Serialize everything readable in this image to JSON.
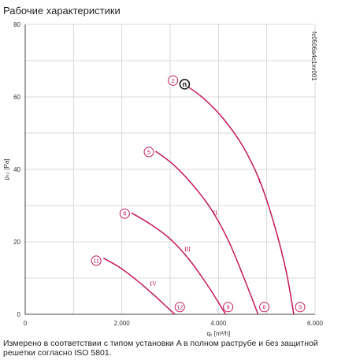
{
  "header": {
    "title": "Рабочие характеристики"
  },
  "note": "Измерено в соответствии с типом установки A в полном раструбе и без защитной решетки согласно ISO 5801.",
  "chart_data": {
    "type": "line",
    "xlabel": "qᵥ [m³/h]",
    "ylabel": "pₛ₂ [Pa]",
    "code": "fc0506a4c1xv001",
    "xlim": [
      0,
      6000
    ],
    "ylim": [
      0,
      80
    ],
    "xticks": [
      0,
      2000,
      4000,
      6000
    ],
    "xtick_labels": [
      "0",
      "2.000",
      "4.000",
      "6.000"
    ],
    "yticks": [
      0,
      20,
      40,
      60,
      80
    ],
    "ytick_labels": [
      "0",
      "20",
      "40",
      "60",
      "80"
    ],
    "color": "#c2185b",
    "grid": true,
    "series": [
      {
        "name": "I",
        "label_at": [
          4850,
          37
        ],
        "x": [
          3350,
          3700,
          4100,
          4500,
          4850,
          5150,
          5400,
          5560
        ],
        "y": [
          63,
          59.5,
          54,
          46.5,
          37,
          25,
          12,
          0
        ]
      },
      {
        "name": "II",
        "label_at": [
          3930,
          28
        ],
        "x": [
          2700,
          3050,
          3450,
          3850,
          4200,
          4500,
          4820
        ],
        "y": [
          45,
          41.5,
          36,
          29,
          20.5,
          11,
          0
        ]
      },
      {
        "name": "III",
        "label_at": [
          3360,
          18
        ],
        "x": [
          2200,
          2600,
          3000,
          3400,
          3800,
          4150
        ],
        "y": [
          28,
          24.8,
          20.8,
          15,
          7.5,
          0
        ]
      },
      {
        "name": "IV",
        "label_at": [
          2650,
          8.5
        ],
        "x": [
          1620,
          1950,
          2300,
          2650,
          2950,
          3100
        ],
        "y": [
          15.5,
          13,
          9.5,
          5.5,
          1.8,
          0
        ]
      }
    ],
    "markers": [
      {
        "label": "2",
        "x": 3060,
        "y": 64.5
      },
      {
        "label": "5",
        "x": 2560,
        "y": 44.8
      },
      {
        "label": "8",
        "x": 2060,
        "y": 27.8
      },
      {
        "label": "11",
        "x": 1470,
        "y": 14.8
      },
      {
        "label": "12",
        "x": 3200,
        "y": 2
      },
      {
        "label": "9",
        "x": 4200,
        "y": 2
      },
      {
        "label": "6",
        "x": 4950,
        "y": 2
      },
      {
        "label": "3",
        "x": 5690,
        "y": 2
      }
    ],
    "nominal_point": {
      "label": "n",
      "x": 3300,
      "y": 63.5
    }
  }
}
